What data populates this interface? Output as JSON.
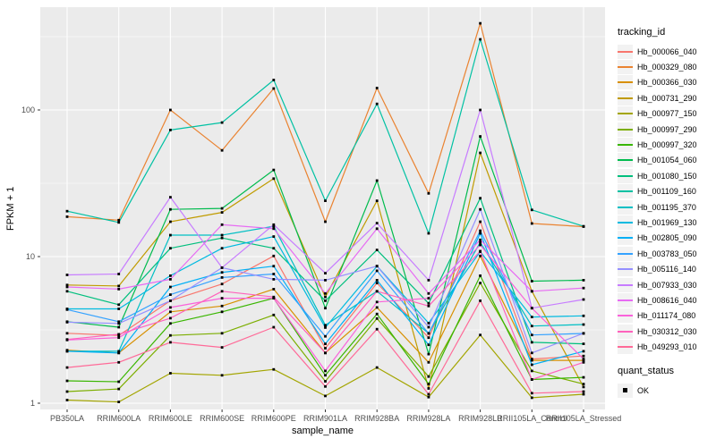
{
  "figure": {
    "background": "#FFFFFF",
    "panel_background": "#EBEBEB",
    "grid_color": "#FFFFFF",
    "tick_color": "#333333",
    "tick_label_color": "#4D4D4D",
    "axis_title_color": "#000000"
  },
  "legend": {
    "tracking": {
      "title": "tracking_id"
    },
    "quant": {
      "title": "quant_status",
      "items": [
        {
          "label": "OK",
          "marker_color": "#000000",
          "marker_shape": "square"
        }
      ]
    }
  },
  "chart_data": {
    "type": "line",
    "title": "",
    "xlabel": "sample_name",
    "ylabel": "FPKM + 1",
    "y_scale": "log10",
    "ylim": [
      0.9,
      500
    ],
    "y_breaks": [
      1,
      10,
      100
    ],
    "y_minor_breaks": [
      3.162,
      31.62,
      316.2
    ],
    "grid": true,
    "legend_position": "right",
    "point_marker": {
      "shape": "square",
      "color": "#000000",
      "meaning": "quant_status = OK at every point"
    },
    "categories": [
      "PB350LA",
      "RRIM600LA",
      "RRIM600LE",
      "RRIM600SE",
      "RRIM600PE",
      "RRIM901LA",
      "RRIM928BA",
      "RRIM928LA",
      "RRIM928LB",
      "RRII105LA_Control",
      "RRII105LA_Stressed"
    ],
    "series": [
      {
        "name": "Hb_000066_040",
        "color": "#F8766D",
        "values": [
          3.0,
          2.9,
          5.0,
          6.5,
          10.1,
          2.37,
          6.6,
          2.8,
          17.3,
          2.0,
          2.1
        ]
      },
      {
        "name": "Hb_000329_080",
        "color": "#EA8331",
        "values": [
          18.7,
          17.7,
          100,
          53,
          140,
          17.3,
          141,
          27,
          390,
          16.8,
          16.0
        ]
      },
      {
        "name": "Hb_000366_030",
        "color": "#D89000",
        "values": [
          2.3,
          2.2,
          4.2,
          4.6,
          6.0,
          2.2,
          4.5,
          1.9,
          10.1,
          1.96,
          1.96
        ]
      },
      {
        "name": "Hb_000731_290",
        "color": "#C09B00",
        "values": [
          6.4,
          6.3,
          17.3,
          20,
          34,
          5.3,
          24,
          1.26,
          51,
          5.8,
          1.29
        ]
      },
      {
        "name": "Hb_000977_150",
        "color": "#A3A500",
        "values": [
          1.05,
          1.02,
          1.6,
          1.55,
          1.7,
          1.12,
          1.75,
          1.1,
          2.92,
          1.09,
          1.15
        ]
      },
      {
        "name": "Hb_000997_290",
        "color": "#7CAE00",
        "values": [
          1.2,
          1.25,
          2.9,
          3.0,
          4.0,
          1.41,
          3.78,
          1.52,
          6.6,
          1.66,
          1.35
        ]
      },
      {
        "name": "Hb_000997_320",
        "color": "#39B600",
        "values": [
          1.42,
          1.4,
          3.5,
          4.2,
          5.2,
          1.55,
          4.06,
          1.35,
          7.4,
          1.45,
          1.5
        ]
      },
      {
        "name": "Hb_001054_060",
        "color": "#00BB4E",
        "values": [
          3.6,
          3.3,
          21,
          21.3,
          39,
          4.45,
          33,
          2.16,
          66,
          6.8,
          6.9
        ]
      },
      {
        "name": "Hb_001080_150",
        "color": "#00BF7D",
        "values": [
          5.8,
          4.7,
          11.4,
          13.4,
          11.4,
          5.0,
          11.1,
          4.8,
          25,
          2.6,
          2.54
        ]
      },
      {
        "name": "Hb_001109_160",
        "color": "#00C1A3",
        "values": [
          20.4,
          17.1,
          73,
          82,
          160,
          24,
          110,
          14.4,
          303,
          20.8,
          16.1
        ]
      },
      {
        "name": "Hb_001195_370",
        "color": "#00BFC4",
        "values": [
          2.26,
          2.26,
          14,
          14,
          16.1,
          3.4,
          5.8,
          3.0,
          12.5,
          3.36,
          3.44
        ]
      },
      {
        "name": "Hb_001969_130",
        "color": "#00BAE0",
        "values": [
          4.4,
          4.4,
          7.4,
          11.4,
          13.7,
          3.28,
          8.6,
          3.52,
          10.8,
          3.87,
          3.94
        ]
      },
      {
        "name": "Hb_002805_090",
        "color": "#00B0F6",
        "values": [
          2.26,
          2.2,
          6.2,
          7.8,
          8.6,
          2.54,
          6.9,
          2.5,
          14.4,
          1.83,
          2.26
        ]
      },
      {
        "name": "Hb_003783_050",
        "color": "#35A2FF",
        "values": [
          4.35,
          3.6,
          5.5,
          7.2,
          7.6,
          2.86,
          8.0,
          2.99,
          15.0,
          2.92,
          2.99
        ]
      },
      {
        "name": "Hb_005116_140",
        "color": "#9590FF",
        "values": [
          3.57,
          3.5,
          5.0,
          8.4,
          7.0,
          6.9,
          8.6,
          3.3,
          21,
          2.2,
          3.0
        ]
      },
      {
        "name": "Hb_007933_030",
        "color": "#C77CFF",
        "values": [
          7.5,
          7.6,
          25.4,
          8.4,
          16.5,
          7.7,
          16.9,
          6.9,
          100,
          4.45,
          5.1
        ]
      },
      {
        "name": "Hb_008616_040",
        "color": "#E76BF3",
        "values": [
          6.2,
          6.0,
          7.0,
          16.5,
          15.5,
          5.6,
          15.5,
          5.6,
          13.0,
          5.8,
          6.1
        ]
      },
      {
        "name": "Hb_011174_080",
        "color": "#FA62DB",
        "values": [
          2.7,
          2.8,
          4.5,
          5.2,
          5.2,
          1.66,
          4.9,
          5.2,
          12.0,
          4.45,
          2.0
        ]
      },
      {
        "name": "Hb_030312_030",
        "color": "#FF62BC",
        "values": [
          2.72,
          2.95,
          3.8,
          5.8,
          5.3,
          2.2,
          5.8,
          4.6,
          10.9,
          1.45,
          1.9
        ]
      },
      {
        "name": "Hb_049293_010",
        "color": "#FF6A98",
        "values": [
          1.75,
          1.9,
          2.6,
          2.4,
          3.3,
          1.3,
          3.2,
          1.15,
          5.0,
          1.17,
          1.2
        ]
      }
    ]
  }
}
